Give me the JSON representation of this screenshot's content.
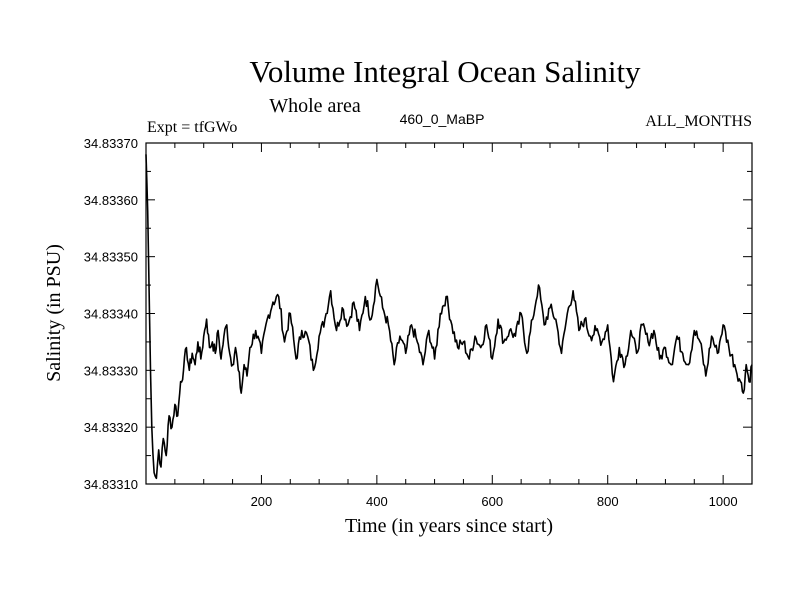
{
  "chart_data": {
    "type": "line",
    "title": "Volume Integral Ocean Salinity",
    "subtitle": "Whole area",
    "header_left": "Expt = tfGWo",
    "header_center": "460_0_MaBP",
    "header_right": "ALL_MONTHS",
    "xlabel": "Time (in years since start)",
    "ylabel": "Salinity (in PSU)",
    "xlim": [
      0,
      1050
    ],
    "ylim": [
      34.8331,
      34.8337
    ],
    "x_ticks": [
      200,
      400,
      600,
      800,
      1000
    ],
    "y_ticks": [
      "34.83310",
      "34.83320",
      "34.83330",
      "34.83340",
      "34.83350",
      "34.83360",
      "34.83370"
    ],
    "series": [
      {
        "name": "Salinity",
        "color": "#000000",
        "x": [
          0,
          3,
          6,
          10,
          14,
          18,
          22,
          26,
          30,
          35,
          40,
          45,
          50,
          55,
          60,
          65,
          70,
          75,
          80,
          85,
          90,
          95,
          100,
          105,
          110,
          115,
          120,
          125,
          130,
          135,
          140,
          145,
          150,
          155,
          160,
          165,
          170,
          175,
          180,
          190,
          200,
          210,
          220,
          230,
          240,
          250,
          260,
          270,
          280,
          290,
          300,
          310,
          320,
          330,
          340,
          350,
          360,
          370,
          380,
          390,
          400,
          410,
          420,
          430,
          440,
          450,
          460,
          470,
          480,
          490,
          500,
          510,
          520,
          530,
          540,
          550,
          560,
          570,
          580,
          590,
          600,
          610,
          620,
          630,
          640,
          650,
          660,
          670,
          680,
          690,
          700,
          710,
          720,
          730,
          740,
          750,
          760,
          770,
          780,
          790,
          800,
          810,
          820,
          830,
          840,
          850,
          860,
          870,
          880,
          890,
          900,
          910,
          920,
          930,
          940,
          950,
          960,
          970,
          980,
          990,
          1000,
          1010,
          1020,
          1030,
          1035,
          1040,
          1045,
          1050
        ],
        "values": [
          34.83368,
          34.83358,
          34.8334,
          34.8332,
          34.83312,
          34.83311,
          34.83316,
          34.83313,
          34.83318,
          34.83315,
          34.83322,
          34.8332,
          34.83324,
          34.83322,
          34.83328,
          34.8333,
          34.83334,
          34.8333,
          34.83333,
          34.83331,
          34.83335,
          34.83332,
          34.83336,
          34.83339,
          34.83334,
          34.83335,
          34.83333,
          34.83337,
          34.83332,
          34.83336,
          34.83338,
          34.83333,
          34.83331,
          34.83334,
          34.8333,
          34.83326,
          34.83331,
          34.83329,
          34.83334,
          34.83337,
          34.83333,
          34.83339,
          34.83342,
          34.83343,
          34.83335,
          34.8334,
          34.83332,
          34.83337,
          34.83336,
          34.8333,
          34.83336,
          34.83339,
          34.83344,
          34.83337,
          34.83341,
          34.83338,
          34.83342,
          34.83337,
          34.83343,
          34.83339,
          34.83346,
          34.83341,
          34.83338,
          34.83331,
          34.83336,
          34.83333,
          34.83338,
          34.83335,
          34.83331,
          34.83337,
          34.83332,
          34.8334,
          34.83343,
          34.83338,
          34.83334,
          34.83335,
          34.83332,
          34.83336,
          34.83334,
          34.83338,
          34.83332,
          34.83339,
          34.83335,
          34.83337,
          34.83336,
          34.8334,
          34.83333,
          34.83339,
          34.83345,
          34.83338,
          34.83341,
          34.83339,
          34.83333,
          34.8334,
          34.83344,
          34.83337,
          34.83339,
          34.83336,
          34.83337,
          34.83335,
          34.83338,
          34.83328,
          34.83334,
          34.83331,
          34.83337,
          34.83333,
          34.83338,
          34.83335,
          34.83337,
          34.83332,
          34.83334,
          34.83331,
          34.83336,
          34.83333,
          34.83331,
          34.83337,
          34.83335,
          34.83329,
          34.83336,
          34.83333,
          34.83338,
          34.83334,
          34.83331,
          34.83328,
          34.83326,
          34.83331,
          34.83328,
          34.83331
        ]
      }
    ]
  }
}
